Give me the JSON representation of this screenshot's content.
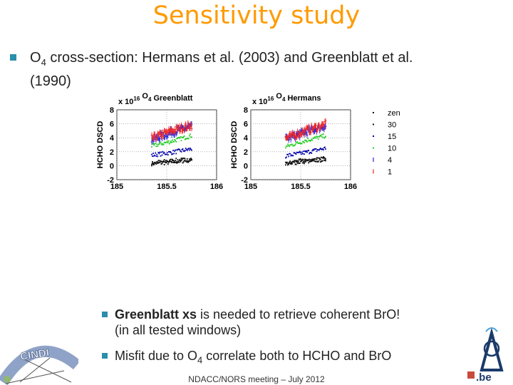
{
  "slide": {
    "title": "Sensitivity study",
    "bullet1": {
      "prefix": "O",
      "sub": "4",
      "line1": " cross-section: Hermans et al. (2003) and Greenblatt et al.",
      "line2": "(1990)"
    },
    "bullet2": {
      "bold": "Greenblatt xs",
      "rest": " is needed to retrieve coherent BrO!",
      "line2": "(in all tested windows)"
    },
    "bullet3": {
      "prefix": "Misfit due to O",
      "sub": "4",
      "rest": " correlate both to HCHO and BrO"
    },
    "footer": "NDACC/NORS meeting – July 2012",
    "logo_left_text": "CINDI",
    "logo_right_text": ".be",
    "accent_color": "#ff9a00",
    "bullet_color": "#2a8fa8"
  },
  "chart_data": [
    {
      "type": "scatter",
      "title_scale": "x 10",
      "title_scale_exp": "16",
      "title": "O",
      "title_sub": "4",
      "title_rest": " Greenblatt",
      "ylabel": "HCHO DSCD",
      "xlim": [
        185,
        186
      ],
      "ylim": [
        -2,
        8
      ],
      "xticks": [
        "185",
        "185.5",
        "186"
      ],
      "yticks": [
        "-2",
        "0",
        "2",
        "4",
        "6",
        "8"
      ],
      "series": [
        {
          "name": "zen",
          "color": "#000000",
          "values": [
            [
              185.35,
              0.3
            ],
            [
              185.55,
              0.5
            ],
            [
              185.75,
              0.8
            ]
          ]
        },
        {
          "name": "30",
          "color": "#111111",
          "values": [
            [
              185.35,
              0.4
            ],
            [
              185.55,
              0.7
            ],
            [
              185.75,
              0.9
            ]
          ]
        },
        {
          "name": "15",
          "color": "#0000aa",
          "values": [
            [
              185.35,
              1.5
            ],
            [
              185.55,
              1.9
            ],
            [
              185.75,
              2.4
            ]
          ]
        },
        {
          "name": "10",
          "color": "#22cc22",
          "values": [
            [
              185.35,
              2.8
            ],
            [
              185.55,
              3.5
            ],
            [
              185.75,
              4.3
            ]
          ]
        },
        {
          "name": "4",
          "color": "#2222dd",
          "values": [
            [
              185.35,
              3.7
            ],
            [
              185.55,
              4.8
            ],
            [
              185.75,
              5.6
            ]
          ]
        },
        {
          "name": "1",
          "color": "#ee2222",
          "values": [
            [
              185.35,
              3.9
            ],
            [
              185.55,
              5.0
            ],
            [
              185.75,
              5.8
            ]
          ]
        }
      ]
    },
    {
      "type": "scatter",
      "title_scale": "x 10",
      "title_scale_exp": "16",
      "title": "O",
      "title_sub": "4",
      "title_rest": " Hermans",
      "ylabel": "HCHO DSCD",
      "xlim": [
        185,
        186
      ],
      "ylim": [
        -2,
        8
      ],
      "xticks": [
        "185",
        "185.5",
        "186"
      ],
      "yticks": [
        "-2",
        "0",
        "2",
        "4",
        "6",
        "8"
      ],
      "series": [
        {
          "name": "zen",
          "color": "#000000",
          "values": [
            [
              185.35,
              0.3
            ],
            [
              185.55,
              0.6
            ],
            [
              185.75,
              0.9
            ]
          ]
        },
        {
          "name": "30",
          "color": "#111111",
          "values": [
            [
              185.35,
              0.4
            ],
            [
              185.55,
              0.8
            ],
            [
              185.75,
              1.0
            ]
          ]
        },
        {
          "name": "15",
          "color": "#0000aa",
          "values": [
            [
              185.35,
              1.4
            ],
            [
              185.55,
              1.9
            ],
            [
              185.75,
              2.5
            ]
          ]
        },
        {
          "name": "10",
          "color": "#22cc22",
          "values": [
            [
              185.35,
              2.7
            ],
            [
              185.55,
              3.6
            ],
            [
              185.75,
              4.3
            ]
          ]
        },
        {
          "name": "4",
          "color": "#2222dd",
          "values": [
            [
              185.35,
              3.8
            ],
            [
              185.55,
              4.8
            ],
            [
              185.75,
              5.7
            ]
          ]
        },
        {
          "name": "1",
          "color": "#ee2222",
          "values": [
            [
              185.35,
              3.9
            ],
            [
              185.55,
              5.0
            ],
            [
              185.75,
              5.9
            ]
          ]
        }
      ]
    }
  ]
}
